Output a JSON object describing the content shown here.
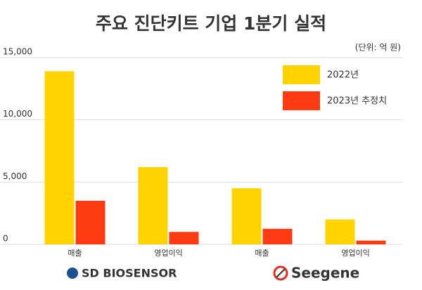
{
  "chart_data": {
    "type": "bar",
    "title": "주요 진단키트 기업 1분기 실적",
    "subtitle": "(단위: 억 원)",
    "categories": [
      "매출",
      "영업이익",
      "매출",
      "영업이익"
    ],
    "series": [
      {
        "name": "2022년",
        "color": "#ffd200",
        "values": [
          13900,
          6200,
          4500,
          2000
        ]
      },
      {
        "name": "2023년 추정치",
        "color": "#ff3b14",
        "values": [
          3500,
          1000,
          1250,
          300
        ]
      }
    ],
    "ylim": [
      0,
      15000
    ],
    "yticks": [
      0,
      {
        "value": 5000,
        "label": "5,000"
      },
      {
        "value": 10000,
        "label": "10,000"
      },
      {
        "value": 15000,
        "label": "15,000"
      }
    ],
    "grid": true,
    "legend": "top-right",
    "annotations": [
      "SD BIOSENSOR",
      "Seegene"
    ]
  }
}
